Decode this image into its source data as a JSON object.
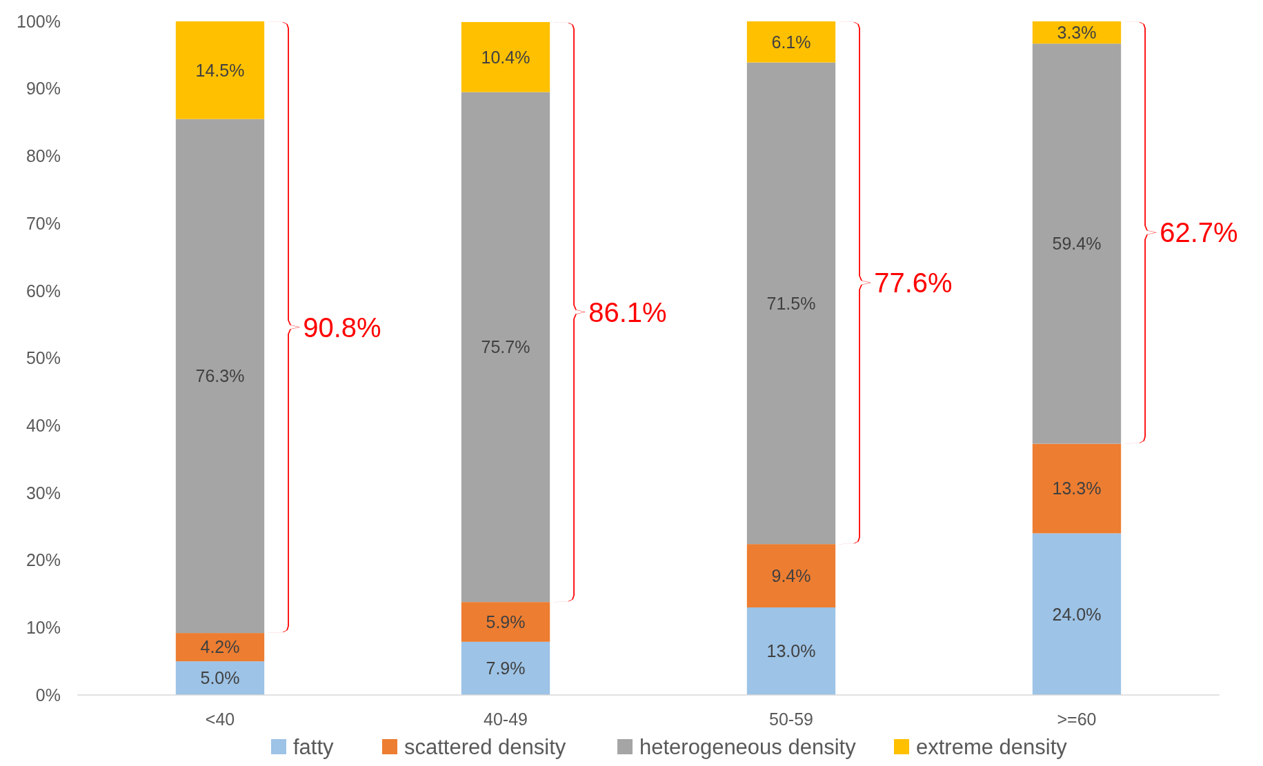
{
  "chart_data": {
    "type": "bar",
    "stacked": true,
    "categories": [
      "<40",
      "40-49",
      "50-59",
      ">=60"
    ],
    "series": [
      {
        "name": "fatty",
        "color": "#9dc3e6",
        "values": [
          5.0,
          7.9,
          13.0,
          24.0
        ],
        "value_labels": [
          "5.0%",
          "7.9%",
          "13.0%",
          "24.0%"
        ]
      },
      {
        "name": "scattered density",
        "color": "#ed7d31",
        "values": [
          4.2,
          5.9,
          9.4,
          13.3
        ],
        "value_labels": [
          "4.2%",
          "5.9%",
          "9.4%",
          "13.3%"
        ]
      },
      {
        "name": "heterogeneous density",
        "color": "#a5a5a5",
        "values": [
          76.3,
          75.7,
          71.5,
          59.4
        ],
        "value_labels": [
          "76.3%",
          "75.7%",
          "71.5%",
          "59.4%"
        ]
      },
      {
        "name": "extreme density",
        "color": "#ffc000",
        "values": [
          14.5,
          10.4,
          6.1,
          3.3
        ],
        "value_labels": [
          "14.5%",
          "10.4%",
          "6.1%",
          "3.3%"
        ]
      }
    ],
    "ylim": [
      0,
      100
    ],
    "yticks": [
      {
        "value": 0,
        "label": "0%"
      },
      {
        "value": 10,
        "label": "10%"
      },
      {
        "value": 20,
        "label": "20%"
      },
      {
        "value": 30,
        "label": "30%"
      },
      {
        "value": 40,
        "label": "40%"
      },
      {
        "value": 50,
        "label": "50%"
      },
      {
        "value": 60,
        "label": "60%"
      },
      {
        "value": 70,
        "label": "70%"
      },
      {
        "value": 80,
        "label": "80%"
      },
      {
        "value": 90,
        "label": "90%"
      },
      {
        "value": 100,
        "label": "100%"
      }
    ],
    "legend": "bottom",
    "grid": false,
    "annotations": [
      "90.8%",
      "86.1%",
      "77.6%",
      "62.7%"
    ]
  }
}
